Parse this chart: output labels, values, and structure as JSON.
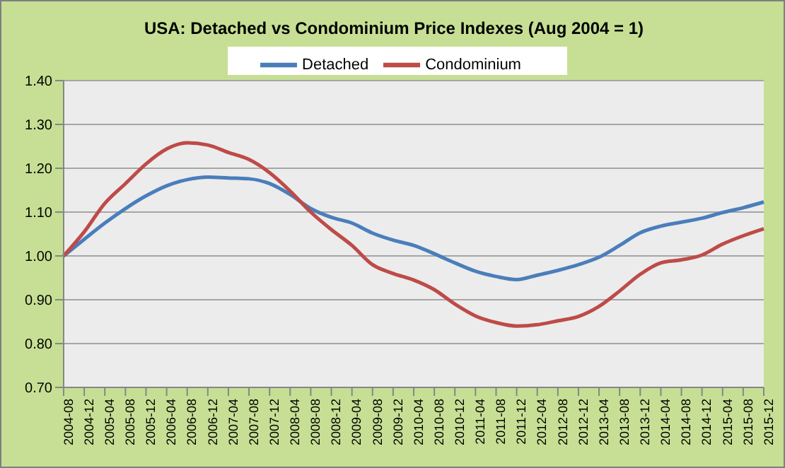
{
  "chart_data": {
    "type": "line",
    "title": "USA: Detached vs Condominium Price Indexes (Aug 2004 = 1)",
    "categories": [
      "2004-08",
      "2004-12",
      "2005-04",
      "2005-08",
      "2005-12",
      "2006-04",
      "2006-08",
      "2006-12",
      "2007-04",
      "2007-08",
      "2007-12",
      "2008-04",
      "2008-08",
      "2008-12",
      "2009-04",
      "2009-08",
      "2009-12",
      "2010-04",
      "2010-08",
      "2010-12",
      "2011-04",
      "2011-08",
      "2011-12",
      "2012-04",
      "2012-08",
      "2012-12",
      "2013-04",
      "2013-08",
      "2013-12",
      "2014-04",
      "2014-08",
      "2014-12",
      "2015-04",
      "2015-08",
      "2015-12"
    ],
    "series": [
      {
        "name": "Detached",
        "color": "#4a7ebb",
        "values": [
          1.0,
          1.038,
          1.075,
          1.108,
          1.137,
          1.16,
          1.174,
          1.18,
          1.178,
          1.176,
          1.165,
          1.14,
          1.108,
          1.088,
          1.075,
          1.052,
          1.036,
          1.024,
          1.005,
          0.984,
          0.965,
          0.953,
          0.946,
          0.956,
          0.967,
          0.98,
          0.997,
          1.024,
          1.053,
          1.068,
          1.077,
          1.086,
          1.099,
          1.11,
          1.123
        ]
      },
      {
        "name": "Condominium",
        "color": "#be4b48",
        "values": [
          1.0,
          1.055,
          1.12,
          1.165,
          1.21,
          1.244,
          1.258,
          1.253,
          1.236,
          1.22,
          1.19,
          1.148,
          1.1,
          1.06,
          1.024,
          0.98,
          0.96,
          0.945,
          0.923,
          0.89,
          0.863,
          0.848,
          0.84,
          0.843,
          0.852,
          0.862,
          0.885,
          0.92,
          0.958,
          0.984,
          0.991,
          1.002,
          1.027,
          1.046,
          1.062
        ]
      }
    ],
    "ylim": [
      0.7,
      1.4
    ],
    "yticks": [
      {
        "value": 0.7,
        "label": "0.70"
      },
      {
        "value": 0.8,
        "label": "0.80"
      },
      {
        "value": 0.9,
        "label": "0.90"
      },
      {
        "value": 1.0,
        "label": "1.00"
      },
      {
        "value": 1.1,
        "label": "1.10"
      },
      {
        "value": 1.2,
        "label": "1.20"
      },
      {
        "value": 1.3,
        "label": "1.30"
      },
      {
        "value": 1.4,
        "label": "1.40"
      }
    ],
    "grid": "y",
    "legend": "top",
    "marker": "none",
    "line_style": "solid"
  }
}
